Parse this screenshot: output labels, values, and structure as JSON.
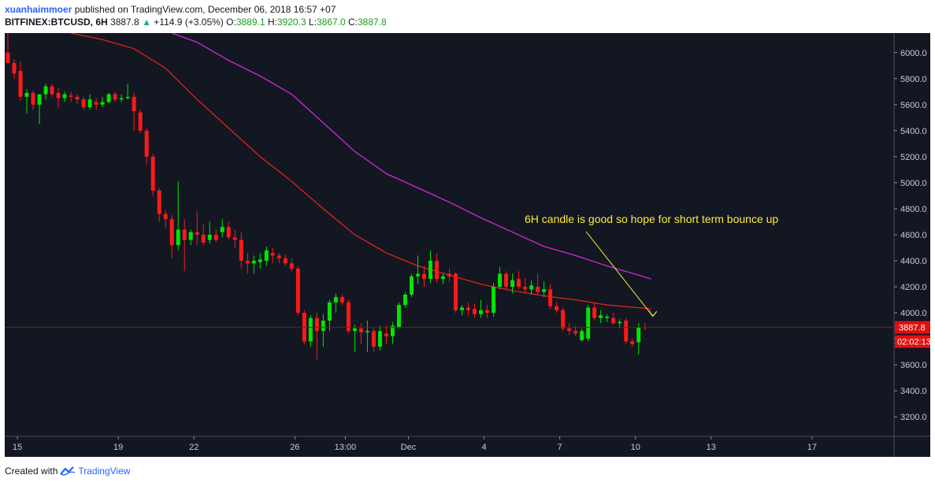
{
  "header": {
    "author": "xuanhaimmoer",
    "published_text": " published on TradingView.com, December 06, 2018 16:57 +07",
    "symbol": "BITFINEX:BTCUSD, 6H",
    "last": "3887.8",
    "change_arrow": "▲",
    "change": "+114.9 (+3.05%)",
    "o_label": "O:",
    "o_value": "3889.1",
    "h_label": "H:",
    "h_value": "3920.3",
    "l_label": "L:",
    "l_value": "3867.0",
    "c_label": "C:",
    "c_value": "3887.8"
  },
  "footer": {
    "created_with": "Created with",
    "brand": "TradingView",
    "logo_icon": "tradingview-logo-icon"
  },
  "chart_data": {
    "type": "candlestick",
    "symbol": "BITFINEX:BTCUSD",
    "timeframe": "6H",
    "ylim": [
      3050,
      6150
    ],
    "y_ticks": [
      3200,
      3400,
      3600,
      3800,
      4000,
      4200,
      4400,
      4600,
      4800,
      5000,
      5200,
      5400,
      5600,
      5800,
      6000
    ],
    "y_tick_labels": [
      "3200.0",
      "3400.0",
      "3600.0",
      "3800.0",
      "4000.0",
      "4200.0",
      "4400.0",
      "4600.0",
      "4800.0",
      "5000.0",
      "5200.0",
      "5400.0",
      "5600.0",
      "5800.0",
      "6000.0"
    ],
    "x_ticks": [
      {
        "label": "15",
        "index": 1.5
      },
      {
        "label": "19",
        "index": 17.5
      },
      {
        "label": "22",
        "index": 29.5
      },
      {
        "label": "26",
        "index": 45.5
      },
      {
        "label": "13:00",
        "index": 53.5
      },
      {
        "label": "Dec",
        "index": 63.5
      },
      {
        "label": "4",
        "index": 75.5
      },
      {
        "label": "7",
        "index": 87.5
      },
      {
        "label": "10",
        "index": 99.5
      },
      {
        "label": "13",
        "index": 111.5
      },
      {
        "label": "17",
        "index": 127.5
      }
    ],
    "n_slots": 141,
    "candles": [
      {
        "o": 6000,
        "h": 6150,
        "l": 5920,
        "c": 5920
      },
      {
        "o": 5920,
        "h": 5950,
        "l": 5800,
        "c": 5840
      },
      {
        "o": 5860,
        "h": 5930,
        "l": 5630,
        "c": 5660
      },
      {
        "o": 5660,
        "h": 5720,
        "l": 5530,
        "c": 5690
      },
      {
        "o": 5690,
        "h": 5710,
        "l": 5560,
        "c": 5600
      },
      {
        "o": 5600,
        "h": 5650,
        "l": 5450,
        "c": 5680
      },
      {
        "o": 5680,
        "h": 5760,
        "l": 5640,
        "c": 5740
      },
      {
        "o": 5740,
        "h": 5760,
        "l": 5660,
        "c": 5680
      },
      {
        "o": 5690,
        "h": 5730,
        "l": 5580,
        "c": 5650
      },
      {
        "o": 5650,
        "h": 5700,
        "l": 5620,
        "c": 5680
      },
      {
        "o": 5670,
        "h": 5700,
        "l": 5620,
        "c": 5660
      },
      {
        "o": 5660,
        "h": 5680,
        "l": 5600,
        "c": 5640
      },
      {
        "o": 5640,
        "h": 5660,
        "l": 5560,
        "c": 5580
      },
      {
        "o": 5580,
        "h": 5680,
        "l": 5560,
        "c": 5640
      },
      {
        "o": 5620,
        "h": 5650,
        "l": 5560,
        "c": 5600
      },
      {
        "o": 5600,
        "h": 5660,
        "l": 5580,
        "c": 5620
      },
      {
        "o": 5620,
        "h": 5690,
        "l": 5610,
        "c": 5680
      },
      {
        "o": 5680,
        "h": 5700,
        "l": 5620,
        "c": 5640
      },
      {
        "o": 5640,
        "h": 5680,
        "l": 5620,
        "c": 5650
      },
      {
        "o": 5650,
        "h": 5760,
        "l": 5640,
        "c": 5660
      },
      {
        "o": 5660,
        "h": 5690,
        "l": 5400,
        "c": 5550
      },
      {
        "o": 5540,
        "h": 5560,
        "l": 5380,
        "c": 5400
      },
      {
        "o": 5400,
        "h": 5420,
        "l": 5140,
        "c": 5200
      },
      {
        "o": 5200,
        "h": 5220,
        "l": 4900,
        "c": 4940
      },
      {
        "o": 4940,
        "h": 4960,
        "l": 4700,
        "c": 4760
      },
      {
        "o": 4760,
        "h": 4790,
        "l": 4650,
        "c": 4720
      },
      {
        "o": 4720,
        "h": 4750,
        "l": 4420,
        "c": 4520
      },
      {
        "o": 4520,
        "h": 5010,
        "l": 4480,
        "c": 4640
      },
      {
        "o": 4640,
        "h": 4720,
        "l": 4320,
        "c": 4560
      },
      {
        "o": 4560,
        "h": 4640,
        "l": 4520,
        "c": 4620
      },
      {
        "o": 4620,
        "h": 4780,
        "l": 4520,
        "c": 4600
      },
      {
        "o": 4600,
        "h": 4680,
        "l": 4520,
        "c": 4540
      },
      {
        "o": 4560,
        "h": 4700,
        "l": 4530,
        "c": 4600
      },
      {
        "o": 4600,
        "h": 4640,
        "l": 4540,
        "c": 4560
      },
      {
        "o": 4620,
        "h": 4720,
        "l": 4580,
        "c": 4660
      },
      {
        "o": 4660,
        "h": 4700,
        "l": 4560,
        "c": 4580
      },
      {
        "o": 4580,
        "h": 4640,
        "l": 4500,
        "c": 4560
      },
      {
        "o": 4560,
        "h": 4620,
        "l": 4340,
        "c": 4400
      },
      {
        "o": 4400,
        "h": 4460,
        "l": 4300,
        "c": 4380
      },
      {
        "o": 4380,
        "h": 4440,
        "l": 4300,
        "c": 4400
      },
      {
        "o": 4390,
        "h": 4460,
        "l": 4340,
        "c": 4410
      },
      {
        "o": 4400,
        "h": 4510,
        "l": 4360,
        "c": 4480
      },
      {
        "o": 4460,
        "h": 4500,
        "l": 4380,
        "c": 4440
      },
      {
        "o": 4440,
        "h": 4460,
        "l": 4380,
        "c": 4420
      },
      {
        "o": 4420,
        "h": 4450,
        "l": 4360,
        "c": 4380
      },
      {
        "o": 4380,
        "h": 4420,
        "l": 4320,
        "c": 4340
      },
      {
        "o": 4340,
        "h": 4360,
        "l": 3980,
        "c": 4000
      },
      {
        "o": 4000,
        "h": 4020,
        "l": 3760,
        "c": 3780
      },
      {
        "o": 3780,
        "h": 3980,
        "l": 3740,
        "c": 3960
      },
      {
        "o": 3960,
        "h": 4000,
        "l": 3640,
        "c": 3860
      },
      {
        "o": 3860,
        "h": 3990,
        "l": 3740,
        "c": 3940
      },
      {
        "o": 3940,
        "h": 4100,
        "l": 3860,
        "c": 4080
      },
      {
        "o": 4080,
        "h": 4150,
        "l": 4000,
        "c": 4120
      },
      {
        "o": 4120,
        "h": 4140,
        "l": 4060,
        "c": 4080
      },
      {
        "o": 4080,
        "h": 4100,
        "l": 3840,
        "c": 3860
      },
      {
        "o": 3860,
        "h": 3910,
        "l": 3700,
        "c": 3880
      },
      {
        "o": 3880,
        "h": 3920,
        "l": 3760,
        "c": 3850
      },
      {
        "o": 3850,
        "h": 3940,
        "l": 3700,
        "c": 3860
      },
      {
        "o": 3860,
        "h": 3880,
        "l": 3700,
        "c": 3740
      },
      {
        "o": 3740,
        "h": 3900,
        "l": 3710,
        "c": 3860
      },
      {
        "o": 3840,
        "h": 3900,
        "l": 3760,
        "c": 3820
      },
      {
        "o": 3820,
        "h": 3930,
        "l": 3760,
        "c": 3900
      },
      {
        "o": 3890,
        "h": 4080,
        "l": 3880,
        "c": 4060
      },
      {
        "o": 4060,
        "h": 4160,
        "l": 4040,
        "c": 4140
      },
      {
        "o": 4140,
        "h": 4300,
        "l": 4120,
        "c": 4280
      },
      {
        "o": 4280,
        "h": 4440,
        "l": 4220,
        "c": 4300
      },
      {
        "o": 4300,
        "h": 4360,
        "l": 4200,
        "c": 4260
      },
      {
        "o": 4260,
        "h": 4480,
        "l": 4230,
        "c": 4400
      },
      {
        "o": 4400,
        "h": 4460,
        "l": 4230,
        "c": 4260
      },
      {
        "o": 4260,
        "h": 4300,
        "l": 4220,
        "c": 4280
      },
      {
        "o": 4300,
        "h": 4340,
        "l": 4240,
        "c": 4280
      },
      {
        "o": 4300,
        "h": 4310,
        "l": 4000,
        "c": 4020
      },
      {
        "o": 4020,
        "h": 4060,
        "l": 3980,
        "c": 4040
      },
      {
        "o": 4040,
        "h": 4080,
        "l": 3980,
        "c": 4020
      },
      {
        "o": 4030,
        "h": 4070,
        "l": 3960,
        "c": 3990
      },
      {
        "o": 3990,
        "h": 4100,
        "l": 3960,
        "c": 4020
      },
      {
        "o": 4020,
        "h": 4060,
        "l": 3960,
        "c": 4000
      },
      {
        "o": 4000,
        "h": 4230,
        "l": 3970,
        "c": 4200
      },
      {
        "o": 4200,
        "h": 4350,
        "l": 4180,
        "c": 4300
      },
      {
        "o": 4300,
        "h": 4320,
        "l": 4180,
        "c": 4200
      },
      {
        "o": 4200,
        "h": 4300,
        "l": 4150,
        "c": 4250
      },
      {
        "o": 4260,
        "h": 4320,
        "l": 4180,
        "c": 4200
      },
      {
        "o": 4200,
        "h": 4270,
        "l": 4150,
        "c": 4180
      },
      {
        "o": 4180,
        "h": 4250,
        "l": 4140,
        "c": 4210
      },
      {
        "o": 4200,
        "h": 4300,
        "l": 4140,
        "c": 4160
      },
      {
        "o": 4160,
        "h": 4240,
        "l": 4120,
        "c": 4180
      },
      {
        "o": 4180,
        "h": 4220,
        "l": 4030,
        "c": 4050
      },
      {
        "o": 4050,
        "h": 4080,
        "l": 4000,
        "c": 4020
      },
      {
        "o": 4020,
        "h": 4040,
        "l": 3860,
        "c": 3880
      },
      {
        "o": 3880,
        "h": 3920,
        "l": 3830,
        "c": 3860
      },
      {
        "o": 3860,
        "h": 3900,
        "l": 3820,
        "c": 3840
      },
      {
        "o": 3790,
        "h": 3880,
        "l": 3780,
        "c": 3860
      },
      {
        "o": 3800,
        "h": 4060,
        "l": 3780,
        "c": 4040
      },
      {
        "o": 4040,
        "h": 4080,
        "l": 3940,
        "c": 3960
      },
      {
        "o": 3960,
        "h": 4020,
        "l": 3920,
        "c": 3980
      },
      {
        "o": 3960,
        "h": 3990,
        "l": 3930,
        "c": 3970
      },
      {
        "o": 3960,
        "h": 4000,
        "l": 3910,
        "c": 3920
      },
      {
        "o": 3920,
        "h": 3950,
        "l": 3880,
        "c": 3930
      },
      {
        "o": 3940,
        "h": 3960,
        "l": 3760,
        "c": 3780
      },
      {
        "o": 3780,
        "h": 3800,
        "l": 3740,
        "c": 3760
      },
      {
        "o": 3773,
        "h": 3920,
        "l": 3680,
        "c": 3889
      },
      {
        "o": 3889,
        "h": 3920,
        "l": 3867,
        "c": 3888
      }
    ],
    "ma_fast": [
      [
        10,
        6150
      ],
      [
        15,
        6100
      ],
      [
        20,
        6030
      ],
      [
        25,
        5880
      ],
      [
        30,
        5640
      ],
      [
        35,
        5420
      ],
      [
        40,
        5200
      ],
      [
        45,
        5010
      ],
      [
        50,
        4800
      ],
      [
        55,
        4600
      ],
      [
        60,
        4460
      ],
      [
        65,
        4360
      ],
      [
        70,
        4290
      ],
      [
        75,
        4220
      ],
      [
        80,
        4170
      ],
      [
        85,
        4130
      ],
      [
        90,
        4100
      ],
      [
        95,
        4060
      ],
      [
        102,
        4030
      ]
    ],
    "ma_slow": [
      [
        26,
        6150
      ],
      [
        30,
        6080
      ],
      [
        35,
        5940
      ],
      [
        40,
        5820
      ],
      [
        45,
        5680
      ],
      [
        50,
        5460
      ],
      [
        55,
        5240
      ],
      [
        60,
        5070
      ],
      [
        65,
        4960
      ],
      [
        70,
        4850
      ],
      [
        75,
        4730
      ],
      [
        80,
        4620
      ],
      [
        85,
        4510
      ],
      [
        90,
        4440
      ],
      [
        95,
        4360
      ],
      [
        100,
        4290
      ],
      [
        102,
        4260
      ]
    ],
    "last_price": 3887.8,
    "last_price_label": "3887.8",
    "countdown": "02:02:13",
    "annotation": {
      "text": "6H candle is good so hope for short term bounce up",
      "arrow_target_index": 102,
      "arrow_target_price": 3950
    },
    "colors": {
      "background": "#131722",
      "up": "#00e600",
      "down": "#ff1a1a",
      "ma_fast": "#e0231c",
      "ma_slow": "#d327d3",
      "annotation": "#ffeb3b",
      "price_line": "#7a1a1a",
      "price_label_bg": "#e01010"
    },
    "grid": false
  }
}
